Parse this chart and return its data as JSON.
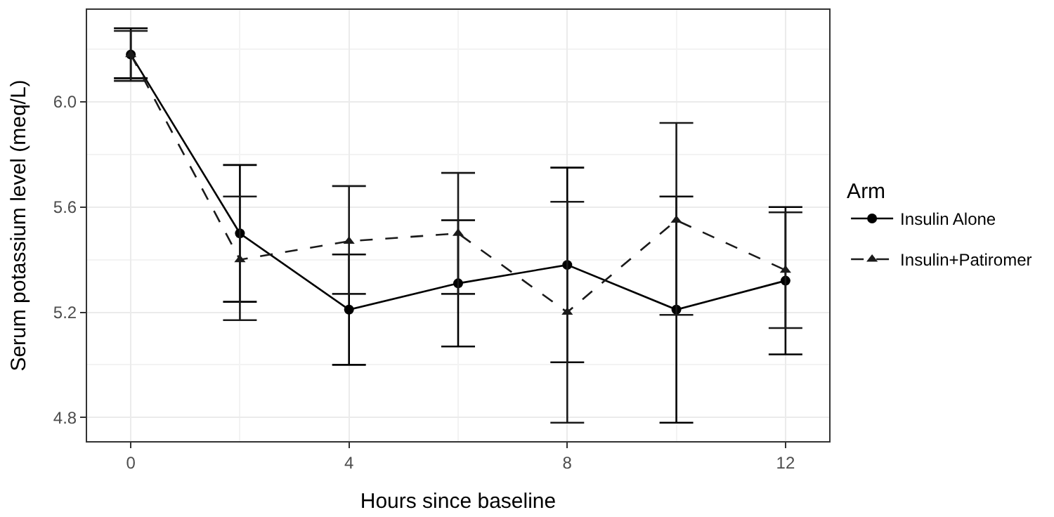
{
  "chart_data": {
    "type": "line",
    "xlabel": "Hours since baseline",
    "ylabel": "Serum potassium level (meq/L)",
    "legend_title": "Arm",
    "legend": "right",
    "grid": true,
    "x": [
      0,
      2,
      4,
      6,
      8,
      10,
      12
    ],
    "xlim": [
      -0.8,
      12.8
    ],
    "xticks": [
      0,
      4,
      8,
      12
    ],
    "ylim": [
      4.71,
      6.35
    ],
    "yticks": [
      {
        "value": 4.8,
        "label": "4.8"
      },
      {
        "value": 5.2,
        "label": "5.2"
      },
      {
        "value": 5.6,
        "label": "5.6"
      },
      {
        "value": 6.0,
        "label": "6.0"
      }
    ],
    "series": [
      {
        "name": "Insulin Alone",
        "color": "#000000",
        "marker": "circle",
        "line_style": "solid",
        "values": [
          6.18,
          5.5,
          5.21,
          5.31,
          5.38,
          5.21,
          5.32
        ],
        "errors": [
          [
            6.09,
            6.28
          ],
          [
            5.24,
            5.76
          ],
          [
            5.0,
            5.42
          ],
          [
            5.07,
            5.55
          ],
          [
            5.01,
            5.75
          ],
          [
            4.78,
            5.64
          ],
          [
            5.04,
            5.6
          ]
        ]
      },
      {
        "name": "Insulin+Patiromer",
        "color": "#1a1a1a",
        "marker": "triangle",
        "line_style": "dashed",
        "values": [
          6.18,
          5.4,
          5.47,
          5.5,
          5.2,
          5.55,
          5.36
        ],
        "errors": [
          [
            6.08,
            6.27
          ],
          [
            5.17,
            5.64
          ],
          [
            5.27,
            5.68
          ],
          [
            5.27,
            5.73
          ],
          [
            4.78,
            5.62
          ],
          [
            5.19,
            5.92
          ],
          [
            5.14,
            5.58
          ]
        ]
      }
    ]
  }
}
